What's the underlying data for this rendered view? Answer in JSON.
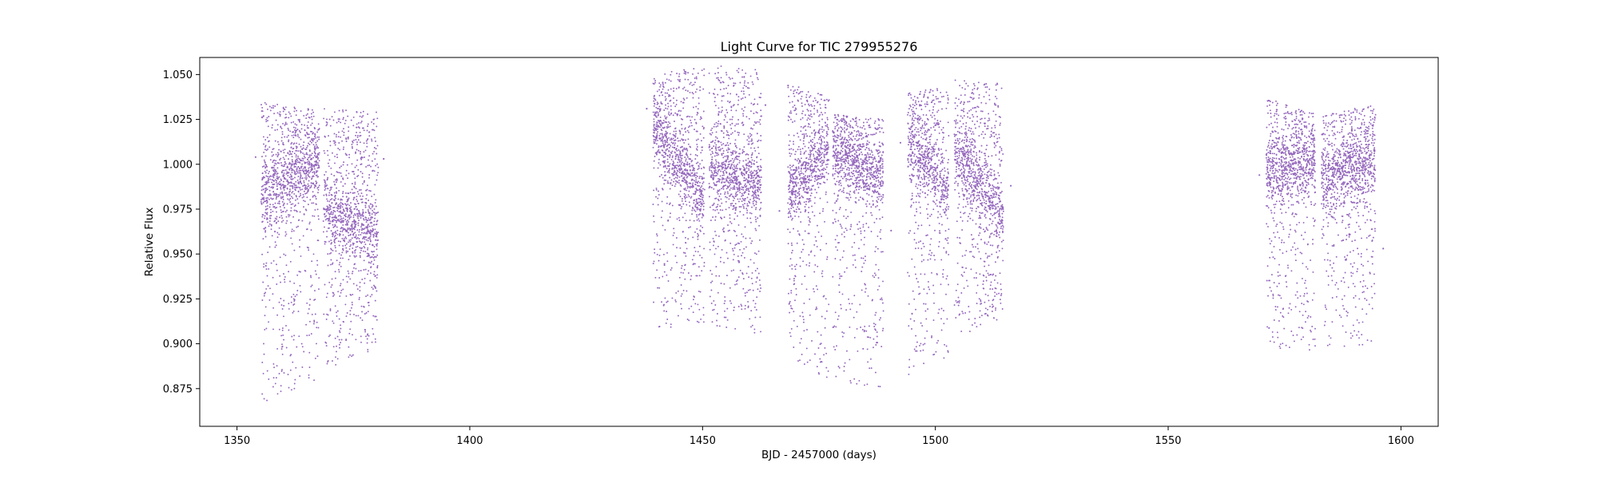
{
  "chart_data": {
    "type": "scatter",
    "title": "Light Curve for TIC 279955276",
    "xlabel": "BJD - 2457000 (days)",
    "ylabel": "Relative Flux",
    "xlim": [
      1342,
      1608
    ],
    "ylim": [
      0.854,
      1.0595
    ],
    "x_ticks": [
      1350,
      1400,
      1450,
      1500,
      1550,
      1600
    ],
    "y_ticks": [
      0.875,
      0.9,
      0.925,
      0.95,
      0.975,
      1.0,
      1.025,
      1.05
    ],
    "x_tick_labels": [
      "1350",
      "1400",
      "1450",
      "1500",
      "1550",
      "1600"
    ],
    "y_tick_labels": [
      "0.875",
      "0.900",
      "0.925",
      "0.950",
      "0.975",
      "1.000",
      "1.025",
      "1.050"
    ],
    "grid": false,
    "legend": "none",
    "marker_color": "#9467bd",
    "segments": [
      {
        "x_start": 1355.2,
        "x_end": 1367.7,
        "upper_start": 1.035,
        "upper_end": 1.03,
        "lower_start": 0.866,
        "lower_end": 0.881,
        "dense_start": 0.982,
        "dense_end": 1.0
      },
      {
        "x_start": 1368.6,
        "x_end": 1380.3,
        "upper_start": 1.031,
        "upper_end": 1.029,
        "lower_start": 0.885,
        "lower_end": 0.898,
        "dense_start": 0.973,
        "dense_end": 0.962
      },
      {
        "x_start": 1439.4,
        "x_end": 1450.4,
        "upper_start": 1.05,
        "upper_end": 1.055,
        "lower_start": 0.907,
        "lower_end": 0.912,
        "dense_start": 1.02,
        "dense_end": 0.982
      },
      {
        "x_start": 1451.4,
        "x_end": 1462.6,
        "upper_start": 1.056,
        "upper_end": 1.053,
        "lower_start": 0.91,
        "lower_end": 0.905,
        "dense_start": 0.996,
        "dense_end": 0.988
      },
      {
        "x_start": 1468.3,
        "x_end": 1477.1,
        "upper_start": 1.045,
        "upper_end": 1.038,
        "lower_start": 0.893,
        "lower_end": 0.876,
        "dense_start": 0.985,
        "dense_end": 1.008
      },
      {
        "x_start": 1477.9,
        "x_end": 1488.8,
        "upper_start": 1.028,
        "upper_end": 1.025,
        "lower_start": 0.88,
        "lower_end": 0.873,
        "dense_start": 1.005,
        "dense_end": 0.99
      },
      {
        "x_start": 1494.1,
        "x_end": 1502.9,
        "upper_start": 1.04,
        "upper_end": 1.043,
        "lower_start": 0.882,
        "lower_end": 0.892,
        "dense_start": 1.01,
        "dense_end": 0.985
      },
      {
        "x_start": 1504.1,
        "x_end": 1514.6,
        "upper_start": 1.047,
        "upper_end": 1.045,
        "lower_start": 0.902,
        "lower_end": 0.915,
        "dense_start": 1.008,
        "dense_end": 0.97
      },
      {
        "x_start": 1571.0,
        "x_end": 1581.6,
        "upper_start": 1.037,
        "upper_end": 1.028,
        "lower_start": 0.897,
        "lower_end": 0.896,
        "dense_start": 0.995,
        "dense_end": 1.0
      },
      {
        "x_start": 1582.9,
        "x_end": 1594.5,
        "upper_start": 1.028,
        "upper_end": 1.033,
        "lower_start": 0.896,
        "lower_end": 0.9,
        "dense_start": 0.992,
        "dense_end": 1.0
      }
    ],
    "outliers": [
      {
        "x": 1354.0,
        "y": 1.004
      },
      {
        "x": 1381.5,
        "y": 1.003
      },
      {
        "x": 1438.0,
        "y": 1.031
      },
      {
        "x": 1463.5,
        "y": 1.033
      },
      {
        "x": 1466.5,
        "y": 0.974
      },
      {
        "x": 1490.5,
        "y": 0.963
      },
      {
        "x": 1492.5,
        "y": 1.012
      },
      {
        "x": 1516.2,
        "y": 0.988
      },
      {
        "x": 1569.6,
        "y": 0.994
      },
      {
        "x": 1596.2,
        "y": 0.953
      }
    ]
  }
}
